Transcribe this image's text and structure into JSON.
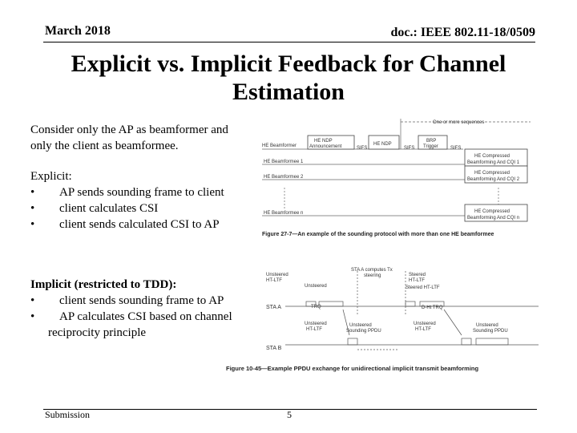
{
  "header": {
    "date": "March 2018",
    "doc_id": "doc.: IEEE 802.11-18/0509"
  },
  "title": "Explicit vs. Implicit Feedback for Channel Estimation",
  "intro": {
    "line1": "Consider only the AP as beamformer and",
    "line2": "only the client as beamformee."
  },
  "explicit": {
    "heading": "Explicit:",
    "items": [
      "AP sends sounding frame to client",
      "client calculates CSI",
      "client sends calculated CSI to AP"
    ]
  },
  "implicit": {
    "heading": "Implicit (restricted to TDD):",
    "item1": "client sends sounding frame to AP",
    "item2": "AP calculates CSI based on channel",
    "item2_wrap": "reciprocity principle"
  },
  "fig1": {
    "caption": "Figure 27-7—An example of the sounding protocol with more than one HE beamformee",
    "seq_label": "One or more sequences",
    "rows": [
      "HE Beamformer",
      "HE Beamformee 1",
      "HE Beamformee 2",
      "HE Beamformee n"
    ],
    "ndpa": [
      "HE NDP",
      "Announcement"
    ],
    "ndp": "HE NDP",
    "brp": [
      "BRP",
      "Trigger"
    ],
    "sifs": "SIFS",
    "reports": [
      [
        "HE Compressed",
        "Beamforming And CQI 1"
      ],
      [
        "HE Compressed",
        "Beamforming And CQI 2"
      ],
      [
        "HE Compressed",
        "Beamforming And CQI n"
      ]
    ]
  },
  "fig2": {
    "caption": "Figure 10-45—Example PPDU exchange for unidirectional implicit transmit beamforming",
    "rows": [
      "STA A",
      "STA B"
    ],
    "left_axis_top": [
      "Unsteered",
      "HT-LTF"
    ],
    "labels": {
      "sta_a_unsteered": "Unsteered",
      "trq": "TRQ",
      "sta_b_unsteered": [
        "Unsteered",
        "HT-LTF"
      ],
      "sta_b_ppdu": [
        "Unsteered",
        "Sounding PPDU"
      ],
      "sta_a_compute": [
        "STA A computes Tx",
        "steering"
      ],
      "steered": [
        "Steered",
        "HT-LTF"
      ],
      "steered_ht": "Steered HT-LTF",
      "ht_trq": "D-Ht TRQ",
      "unsteered_right": [
        "Unsteered",
        "HT-LTF"
      ],
      "sta_b_ppdu2": [
        "Unsteered",
        "Sounding PPDU"
      ]
    }
  },
  "footer": {
    "submission": "Submission",
    "page": "5"
  }
}
